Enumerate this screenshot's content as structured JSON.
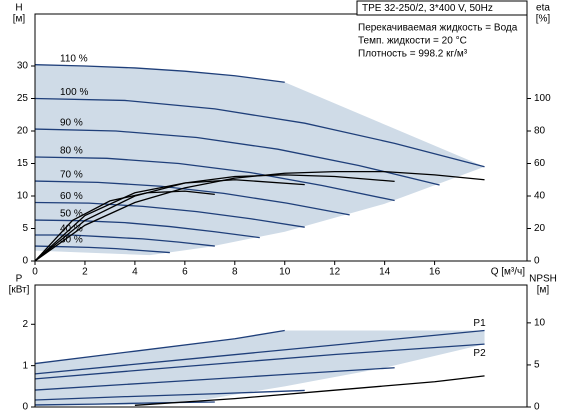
{
  "chart_data": [
    {
      "type": "line",
      "title": "TPE 32-250/2, 3*400 V, 50Hz",
      "notes": [
        "Перекачиваемая жидкость = Вода",
        "Темп. жидкости = 20 °C",
        "Плотность = 998.2 кг/м³"
      ],
      "x_label": "Q [м³/ч]",
      "y_label": "H",
      "y_unit": "[м]",
      "y2_label": "eta",
      "y2_unit": "[%]",
      "xlim": [
        0,
        19.7
      ],
      "xticks": [
        0,
        2,
        4,
        6,
        8,
        10,
        12,
        14,
        16
      ],
      "ylim": [
        0,
        38
      ],
      "yticks": [
        0,
        5,
        10,
        15,
        20,
        25,
        30
      ],
      "y2lim": [
        0,
        152
      ],
      "y2ticks": [
        0,
        20,
        40,
        60,
        80,
        100
      ],
      "grid": false,
      "area": {
        "color": "#cfdbe7",
        "x": [
          0,
          2,
          4,
          6,
          8,
          10,
          18,
          14,
          10,
          7,
          4.6,
          0
        ],
        "values": [
          30.2,
          30.0,
          29.7,
          29.2,
          28.5,
          27.5,
          14.5,
          8.8,
          4.5,
          2.2,
          0.9,
          1.6
        ]
      },
      "series": [
        {
          "name": "110 %",
          "color": "#1f3f7a",
          "x": [
            0,
            2,
            4,
            6,
            8,
            10
          ],
          "values": [
            30.2,
            30.0,
            29.7,
            29.2,
            28.5,
            27.5
          ]
        },
        {
          "name": "100 %",
          "color": "#1f3f7a",
          "x": [
            0,
            3.6,
            7.2,
            10.8,
            14.4,
            18
          ],
          "values": [
            25,
            24.7,
            23.4,
            21.2,
            18.1,
            14.5
          ]
        },
        {
          "name": "90 %",
          "color": "#1f3f7a",
          "x": [
            0,
            3.24,
            6.48,
            9.72,
            12.96,
            16.2
          ],
          "values": [
            20.3,
            20.0,
            19.0,
            17.2,
            14.7,
            11.7
          ]
        },
        {
          "name": "80 %",
          "color": "#1f3f7a",
          "x": [
            0,
            2.88,
            5.76,
            8.64,
            11.52,
            14.4
          ],
          "values": [
            16,
            15.8,
            15.0,
            13.6,
            11.6,
            9.3
          ]
        },
        {
          "name": "70 %",
          "color": "#1f3f7a",
          "x": [
            0,
            2.52,
            5.04,
            7.56,
            10.08,
            12.6
          ],
          "values": [
            12.3,
            12.1,
            11.5,
            10.4,
            8.9,
            7.1
          ]
        },
        {
          "name": "60 %",
          "color": "#1f3f7a",
          "x": [
            0,
            2.16,
            4.32,
            6.48,
            8.64,
            10.8
          ],
          "values": [
            9,
            8.9,
            8.4,
            7.6,
            6.5,
            5.2
          ]
        },
        {
          "name": "50 %",
          "color": "#1f3f7a",
          "x": [
            0,
            1.8,
            3.6,
            5.4,
            7.2,
            9
          ],
          "values": [
            6.3,
            6.2,
            5.9,
            5.3,
            4.5,
            3.6
          ]
        },
        {
          "name": "40 %",
          "color": "#1f3f7a",
          "x": [
            0,
            1.44,
            2.88,
            4.32,
            5.76,
            7.2
          ],
          "values": [
            4,
            4,
            3.7,
            3.4,
            2.9,
            2.3
          ]
        },
        {
          "name": "30 %",
          "color": "#1f3f7a",
          "x": [
            0,
            1.08,
            2.16,
            3.24,
            4.32,
            5.4
          ],
          "values": [
            2.3,
            2.2,
            2.1,
            1.9,
            1.6,
            1.3
          ]
        },
        {
          "axis": "y2",
          "color": "#000000",
          "x": [
            0,
            2,
            4,
            6,
            8,
            10,
            12,
            14,
            16,
            18
          ],
          "values": [
            0,
            22,
            36,
            45,
            51,
            54,
            55,
            55,
            53,
            50
          ]
        },
        {
          "axis": "y2",
          "color": "#000000",
          "x": [
            0,
            2,
            4,
            6,
            8,
            10,
            12,
            14.4
          ],
          "values": [
            0,
            25,
            40,
            48,
            52,
            53,
            52,
            49
          ]
        },
        {
          "axis": "y2",
          "color": "#000000",
          "x": [
            0,
            2,
            4,
            6,
            8,
            10.8
          ],
          "values": [
            0,
            28,
            42,
            48,
            50,
            47
          ]
        },
        {
          "axis": "y2",
          "color": "#000000",
          "x": [
            0,
            1.5,
            3,
            4.5,
            6,
            7.2
          ],
          "values": [
            0,
            25,
            37,
            42,
            43,
            41
          ]
        }
      ]
    },
    {
      "type": "line",
      "y_label": "P",
      "y_unit": "[кВт]",
      "y2_label": "NPSH",
      "y2_unit": "[м]",
      "xlim": [
        0,
        19.7
      ],
      "ylim": [
        0,
        2.95
      ],
      "yticks": [
        0,
        1,
        2
      ],
      "y2lim": [
        0,
        14.5
      ],
      "y2ticks": [
        0,
        5,
        10
      ],
      "grid": false,
      "area": {
        "color": "#cfdbe7",
        "x": [
          0,
          2,
          4,
          6,
          8,
          10,
          18,
          18,
          14,
          10,
          7,
          4.6,
          0
        ],
        "values": [
          1.05,
          1.2,
          1.35,
          1.5,
          1.65,
          1.85,
          1.85,
          1.52,
          0.95,
          0.5,
          0.2,
          0.06,
          0.02
        ]
      },
      "series": [
        {
          "name": "P1",
          "color": "#1f3f7a",
          "x": [
            0,
            6,
            12,
            18
          ],
          "values": [
            0.8,
            1.15,
            1.5,
            1.85
          ]
        },
        {
          "name": "P2",
          "color": "#1f3f7a",
          "x": [
            0,
            6,
            12,
            18
          ],
          "values": [
            0.68,
            0.98,
            1.27,
            1.52
          ]
        },
        {
          "color": "#1f3f7a",
          "x": [
            0,
            4,
            8,
            10
          ],
          "values": [
            1.05,
            1.35,
            1.65,
            1.85
          ]
        },
        {
          "color": "#1f3f7a",
          "x": [
            0,
            4.8,
            9.6,
            14.4
          ],
          "values": [
            0.41,
            0.59,
            0.77,
            0.95
          ]
        },
        {
          "color": "#1f3f7a",
          "x": [
            0,
            3.6,
            7.2,
            10.8
          ],
          "values": [
            0.17,
            0.25,
            0.32,
            0.4
          ]
        },
        {
          "color": "#1f3f7a",
          "x": [
            0,
            2.4,
            4.8,
            7.2
          ],
          "values": [
            0.05,
            0.07,
            0.1,
            0.12
          ]
        },
        {
          "axis": "y2",
          "color": "#000000",
          "x": [
            4,
            8,
            12,
            16,
            18
          ],
          "values": [
            0.2,
            1,
            2,
            3,
            3.7
          ]
        }
      ]
    }
  ]
}
